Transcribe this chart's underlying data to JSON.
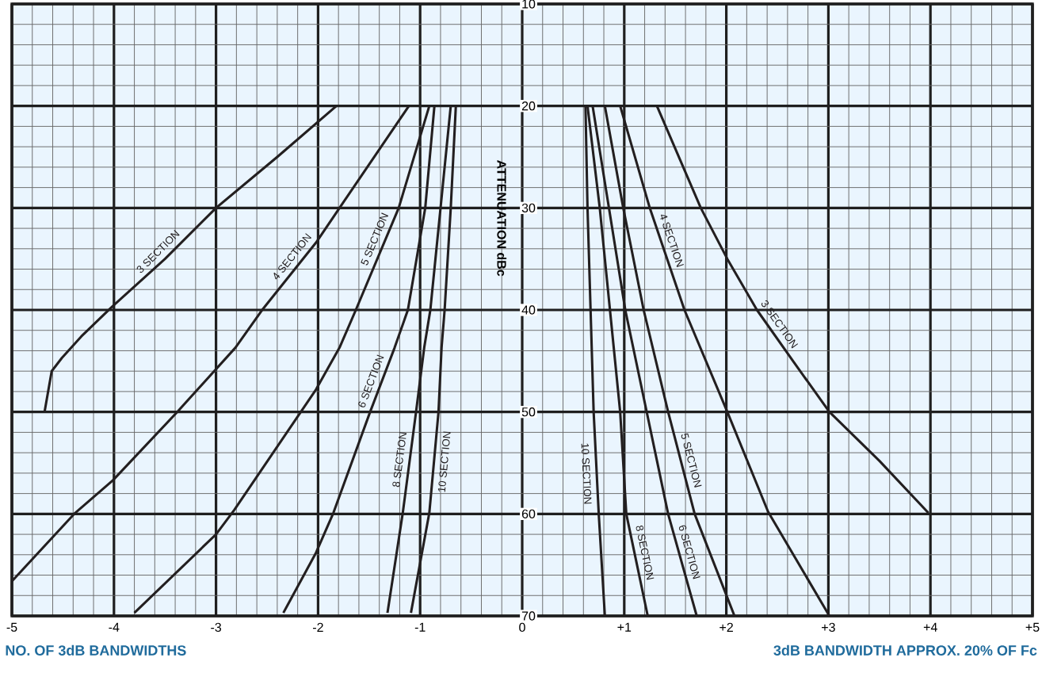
{
  "chart_data": {
    "type": "line",
    "xlabel": "NO. OF 3dB BANDWIDTHS",
    "ylabel": "ATTENUATION dBc",
    "annotations": [
      "3dB BANDWIDTH APPROX. 20% OF Fc"
    ],
    "xlim": [
      -5,
      5
    ],
    "ylim": [
      70,
      10
    ],
    "xticks": [
      -5,
      -4,
      -3,
      -2,
      -1,
      0,
      {
        "value": 1,
        "label": "+1"
      },
      {
        "value": 2,
        "label": "+2"
      },
      {
        "value": 3,
        "label": "+3"
      },
      {
        "value": 4,
        "label": "+4"
      },
      {
        "value": 5,
        "label": "+5"
      }
    ],
    "yticks": [
      10,
      20,
      30,
      40,
      50,
      60,
      70
    ],
    "grid": true,
    "marker": "none",
    "line_style": "solid",
    "series": [
      {
        "name": "3 SECTION",
        "color": "#231f20",
        "x": [
          -1.82,
          -2.4,
          -3.0,
          -3.5,
          -4.02,
          -4.32,
          -4.51,
          -4.61,
          -4.68
        ],
        "values": [
          20,
          25,
          30,
          35,
          39.7,
          42.6,
          44.7,
          46,
          50
        ]
      },
      {
        "name": "4 SECTION",
        "color": "#231f20",
        "x": [
          -1.11,
          -1.79,
          -2.02,
          -2.54,
          -2.81,
          -3.38,
          -4.01,
          -4.38,
          -5.0
        ],
        "values": [
          20,
          30,
          33.4,
          39.9,
          43.7,
          50,
          56.7,
          59.9,
          66.6
        ]
      },
      {
        "name": "5 SECTION",
        "color": "#231f20",
        "x": [
          -0.91,
          -1.21,
          -1.63,
          -1.79,
          -2.02,
          -2.82,
          -3.0,
          -3.8
        ],
        "values": [
          20,
          30,
          40,
          43.7,
          47.8,
          59.6,
          62,
          69.7
        ]
      },
      {
        "name": "6 SECTION",
        "color": "#231f20",
        "x": [
          -0.86,
          -0.95,
          -1.12,
          -1.25,
          -1.49,
          -1.85,
          -2.02,
          -2.34
        ],
        "values": [
          20,
          30,
          40,
          43.7,
          50,
          59.9,
          63.8,
          69.7
        ]
      },
      {
        "name": "8 SECTION",
        "color": "#231f20",
        "x": [
          -0.7,
          -0.8,
          -0.9,
          -0.96,
          -1.04,
          -1.17,
          -1.32
        ],
        "values": [
          20,
          30,
          40,
          43.7,
          50,
          59.9,
          69.7
        ]
      },
      {
        "name": "10 SECTION",
        "color": "#231f20",
        "x": [
          -0.65,
          -0.7,
          -0.76,
          -0.79,
          -0.82,
          -0.91,
          -1.09
        ],
        "values": [
          20,
          30,
          40,
          43.7,
          50,
          59.9,
          69.7
        ]
      },
      {
        "name": "3 SECTION",
        "color": "#231f20",
        "x": [
          1.32,
          1.75,
          2.01,
          2.3,
          2.66,
          3.01,
          3.5,
          3.98
        ],
        "values": [
          20,
          30,
          35,
          40,
          45.1,
          50,
          54.8,
          59.9
        ]
      },
      {
        "name": "4 SECTION",
        "color": "#231f20",
        "x": [
          0.96,
          1.25,
          1.59,
          2.01,
          2.41,
          3.01
        ],
        "values": [
          20,
          30,
          40,
          50,
          59.8,
          70
        ]
      },
      {
        "name": "5 SECTION",
        "color": "#231f20",
        "x": [
          0.81,
          0.99,
          1.19,
          1.43,
          1.69,
          2.08
        ],
        "values": [
          20,
          30,
          40,
          50,
          60,
          70
        ]
      },
      {
        "name": "6 SECTION",
        "color": "#231f20",
        "x": [
          0.69,
          0.85,
          1.01,
          1.22,
          1.43,
          1.71
        ],
        "values": [
          20,
          30,
          40,
          50,
          60,
          70
        ]
      },
      {
        "name": "8 SECTION",
        "color": "#231f20",
        "x": [
          0.64,
          0.76,
          0.86,
          0.96,
          1.02,
          1.23
        ],
        "values": [
          20,
          30,
          40,
          50,
          60,
          70
        ]
      },
      {
        "name": "10 SECTION",
        "color": "#231f20",
        "x": [
          0.62,
          0.64,
          0.67,
          0.7,
          0.75,
          0.81
        ],
        "values": [
          20,
          30,
          40,
          50,
          60,
          70
        ]
      }
    ]
  }
}
